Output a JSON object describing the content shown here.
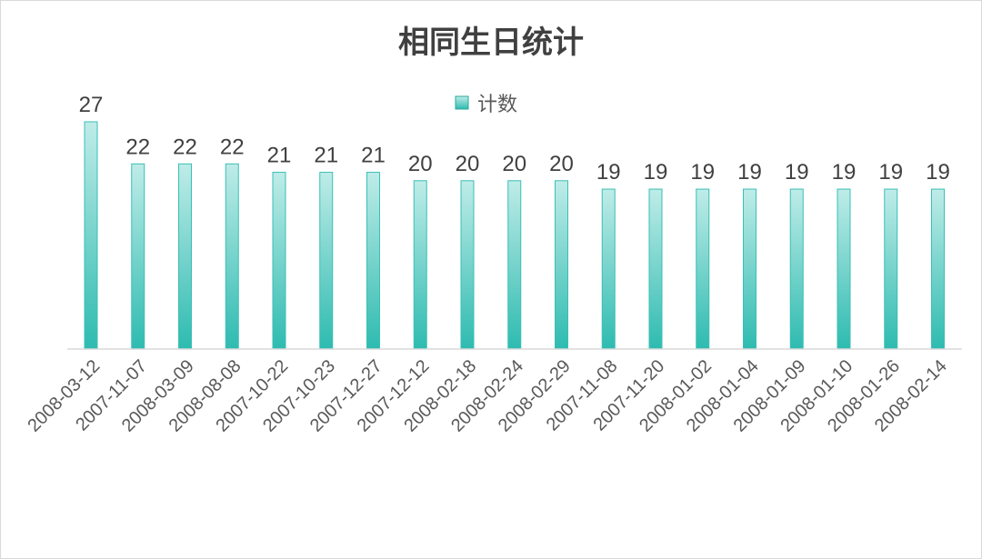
{
  "chart_data": {
    "type": "bar",
    "title": "相同生日统计",
    "series": [
      {
        "name": "计数",
        "color": "#3bbfb5",
        "values": [
          27,
          22,
          22,
          22,
          21,
          21,
          21,
          20,
          20,
          20,
          20,
          19,
          19,
          19,
          19,
          19,
          19,
          19,
          19
        ]
      }
    ],
    "categories": [
      "2008-03-12",
      "2007-11-07",
      "2008-03-09",
      "2008-08-08",
      "2007-10-22",
      "2007-10-23",
      "2007-12-27",
      "2007-12-12",
      "2008-02-18",
      "2008-02-24",
      "2008-02-29",
      "2007-11-08",
      "2007-11-20",
      "2008-01-02",
      "2008-01-04",
      "2008-01-09",
      "2008-01-10",
      "2008-01-26",
      "2008-02-14"
    ],
    "ylim": [
      0,
      27
    ],
    "legend_position": "top",
    "data_labels": true,
    "grid": false
  }
}
